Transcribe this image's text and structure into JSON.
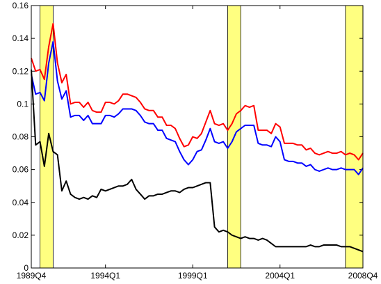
{
  "chart_data": {
    "type": "line",
    "categories": [
      "1989Q4",
      null,
      null,
      null,
      null,
      null,
      null,
      null,
      null,
      null,
      null,
      null,
      null,
      null,
      null,
      null,
      null,
      "1994Q1",
      null,
      null,
      null,
      null,
      null,
      null,
      null,
      null,
      null,
      null,
      null,
      null,
      null,
      null,
      null,
      null,
      null,
      null,
      null,
      "1999Q1",
      null,
      null,
      null,
      null,
      null,
      null,
      null,
      null,
      null,
      null,
      null,
      null,
      null,
      null,
      null,
      null,
      null,
      null,
      null,
      "2004Q1",
      null,
      null,
      null,
      null,
      null,
      null,
      null,
      null,
      null,
      null,
      null,
      null,
      null,
      null,
      null,
      null,
      null,
      null,
      "2008Q4"
    ],
    "series": [
      {
        "color": "#ff0000",
        "values": [
          0.128,
          0.12,
          0.121,
          0.115,
          0.135,
          0.149,
          0.125,
          0.113,
          0.118,
          0.1,
          0.101,
          0.101,
          0.098,
          0.101,
          0.096,
          0.095,
          0.095,
          0.101,
          0.101,
          0.1,
          0.102,
          0.106,
          0.106,
          0.105,
          0.104,
          0.101,
          0.097,
          0.096,
          0.096,
          0.092,
          0.092,
          0.087,
          0.087,
          0.085,
          0.079,
          0.074,
          0.075,
          0.08,
          0.079,
          0.082,
          0.089,
          0.096,
          0.088,
          0.087,
          0.088,
          0.084,
          0.088,
          0.094,
          0.096,
          0.099,
          0.098,
          0.099,
          0.084,
          0.084,
          0.084,
          0.082,
          0.088,
          0.086,
          0.076,
          0.076,
          0.076,
          0.075,
          0.075,
          0.072,
          0.073,
          0.07,
          0.069,
          0.07,
          0.071,
          0.07,
          0.07,
          0.071,
          0.069,
          0.07,
          0.069,
          0.066,
          0.07
        ]
      },
      {
        "color": "#0000ff",
        "values": [
          0.118,
          0.106,
          0.107,
          0.102,
          0.125,
          0.138,
          0.114,
          0.103,
          0.108,
          0.092,
          0.093,
          0.093,
          0.09,
          0.093,
          0.088,
          0.088,
          0.088,
          0.093,
          0.093,
          0.092,
          0.094,
          0.097,
          0.097,
          0.097,
          0.096,
          0.093,
          0.089,
          0.088,
          0.088,
          0.084,
          0.084,
          0.079,
          0.078,
          0.077,
          0.071,
          0.066,
          0.063,
          0.066,
          0.071,
          0.072,
          0.078,
          0.085,
          0.077,
          0.076,
          0.077,
          0.073,
          0.077,
          0.083,
          0.085,
          0.087,
          0.087,
          0.087,
          0.076,
          0.075,
          0.075,
          0.074,
          0.08,
          0.077,
          0.066,
          0.065,
          0.065,
          0.064,
          0.064,
          0.062,
          0.063,
          0.06,
          0.059,
          0.06,
          0.061,
          0.06,
          0.06,
          0.061,
          0.06,
          0.06,
          0.06,
          0.057,
          0.061
        ]
      },
      {
        "color": "#000000",
        "values": [
          0.121,
          0.075,
          0.077,
          0.062,
          0.082,
          0.071,
          0.069,
          0.047,
          0.053,
          0.045,
          0.043,
          0.042,
          0.043,
          0.042,
          0.044,
          0.043,
          0.048,
          0.047,
          0.048,
          0.049,
          0.05,
          0.05,
          0.051,
          0.054,
          0.048,
          0.045,
          0.042,
          0.044,
          0.044,
          0.045,
          0.045,
          0.046,
          0.047,
          0.047,
          0.046,
          0.048,
          0.049,
          0.049,
          0.05,
          0.051,
          0.052,
          0.052,
          0.025,
          0.022,
          0.023,
          0.022,
          0.02,
          0.019,
          0.018,
          0.019,
          0.018,
          0.018,
          0.017,
          0.018,
          0.017,
          0.015,
          0.013,
          0.013,
          0.013,
          0.013,
          0.013,
          0.013,
          0.013,
          0.013,
          0.014,
          0.013,
          0.013,
          0.014,
          0.014,
          0.014,
          0.014,
          0.013,
          0.013,
          0.013,
          0.012,
          0.011,
          0.01
        ]
      }
    ],
    "shaded_ranges": [
      [
        2,
        5
      ],
      [
        45,
        48
      ],
      [
        72,
        76
      ]
    ],
    "shade_color": "#ffff80",
    "ylim": [
      0,
      0.16
    ],
    "yticks": [
      0,
      0.02,
      0.04,
      0.06,
      0.08,
      0.1,
      0.12,
      0.14,
      0.16
    ]
  }
}
